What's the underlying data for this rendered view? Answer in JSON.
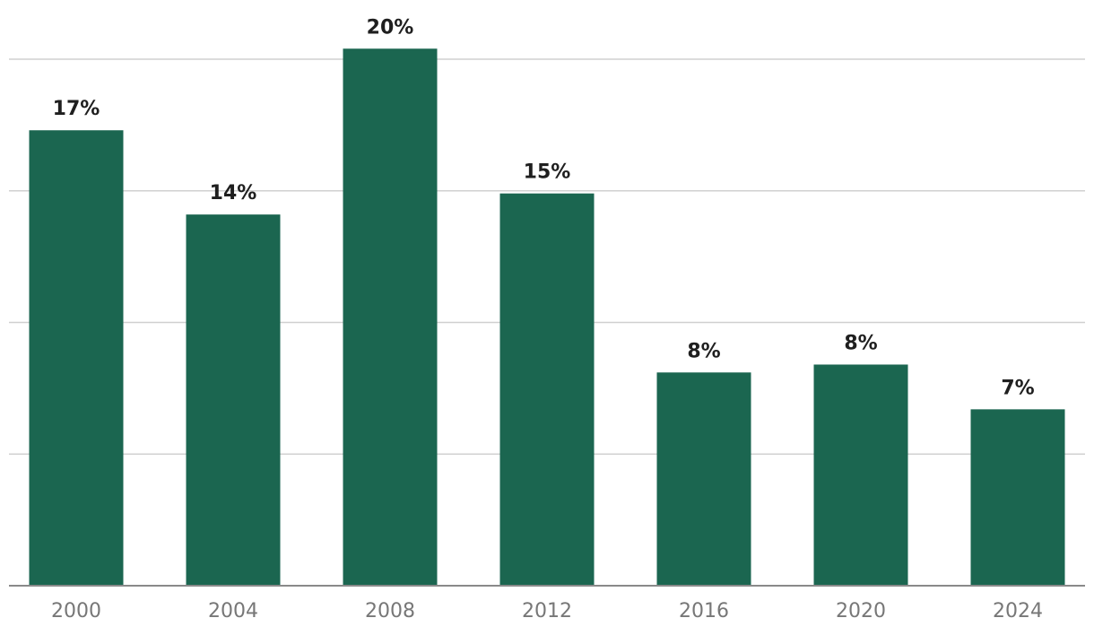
{
  "chart_data": {
    "type": "bar",
    "title": "",
    "xlabel": "",
    "ylabel": "",
    "categories": [
      "2000",
      "2004",
      "2008",
      "2012",
      "2016",
      "2020",
      "2024"
    ],
    "values": [
      17.3,
      14.1,
      20.4,
      14.9,
      8.1,
      8.4,
      6.7
    ],
    "data_labels": [
      "17%",
      "14%",
      "20%",
      "15%",
      "8%",
      "8%",
      "7%"
    ],
    "ylim": [
      0,
      20
    ],
    "gridlines": [
      0,
      5,
      10,
      15,
      20
    ],
    "grid": true,
    "y_tick_labels_shown": false,
    "legend": "none",
    "bar_color": "#1b6650",
    "gridline_color": "#d0d0d0",
    "baseline_color": "#8a8a8a",
    "label_color": "#1f1f1f",
    "tick_color": "#777777"
  }
}
